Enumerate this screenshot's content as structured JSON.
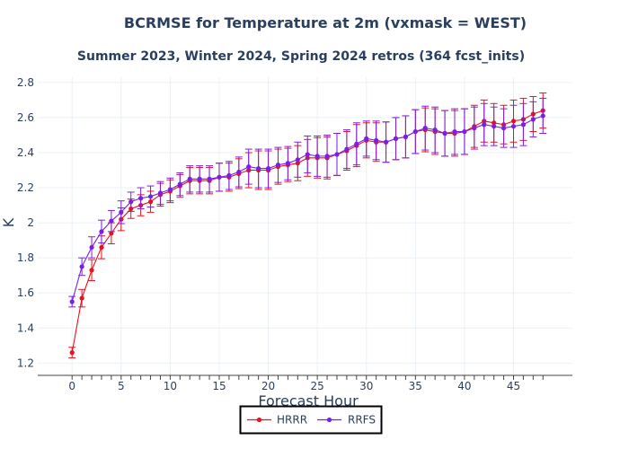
{
  "chart_data": {
    "type": "line",
    "title": "BCRMSE for Temperature at 2m (vxmask = WEST)",
    "subtitle": "Summer 2023, Winter 2024, Spring 2024 retros (364 fcst_inits)",
    "xlabel": "Forecast Hour",
    "ylabel": "K",
    "xlim": [
      -3.5,
      51
    ],
    "ylim": [
      1.13,
      2.83
    ],
    "xticks": [
      0,
      5,
      10,
      15,
      20,
      25,
      30,
      35,
      40,
      45
    ],
    "yticks": [
      1.2,
      1.4,
      1.6,
      1.8,
      2.0,
      2.2,
      2.4,
      2.6,
      2.8
    ],
    "ytick_labels": [
      "1.2",
      "1.4",
      "1.6",
      "1.8",
      "2",
      "2.2",
      "2.4",
      "2.6",
      "2.8"
    ],
    "grid": true,
    "legend_position": "bottom-center",
    "error_halfwidth": [
      0.03,
      0.05,
      0.06,
      0.065,
      0.06,
      0.065,
      0.055,
      0.06,
      0.06,
      0.065,
      0.065,
      0.065,
      0.075,
      0.075,
      0.075,
      0.08,
      0.08,
      0.085,
      0.1,
      0.11,
      0.11,
      0.1,
      0.095,
      0.1,
      0.105,
      0.115,
      0.12,
      0.12,
      0.11,
      0.12,
      0.1,
      0.11,
      0.115,
      0.12,
      0.12,
      0.125,
      0.125,
      0.13,
      0.13,
      0.13,
      0.13,
      0.12,
      0.12,
      0.11,
      0.11,
      0.12,
      0.12,
      0.1,
      0.1
    ],
    "series": [
      {
        "name": "HRRR",
        "color": "#e8121b",
        "x": [
          0,
          1,
          2,
          3,
          4,
          5,
          6,
          7,
          8,
          9,
          10,
          11,
          12,
          13,
          14,
          15,
          16,
          17,
          18,
          19,
          20,
          21,
          22,
          23,
          24,
          25,
          26,
          27,
          28,
          29,
          30,
          31,
          32,
          33,
          34,
          35,
          36,
          37,
          38,
          39,
          40,
          41,
          42,
          43,
          44,
          45,
          46,
          47,
          48
        ],
        "y": [
          1.26,
          1.57,
          1.73,
          1.86,
          1.94,
          2.02,
          2.08,
          2.1,
          2.12,
          2.16,
          2.18,
          2.21,
          2.24,
          2.24,
          2.24,
          2.26,
          2.26,
          2.28,
          2.3,
          2.3,
          2.3,
          2.32,
          2.33,
          2.34,
          2.37,
          2.37,
          2.37,
          2.39,
          2.41,
          2.44,
          2.47,
          2.46,
          2.46,
          2.48,
          2.49,
          2.52,
          2.53,
          2.52,
          2.51,
          2.51,
          2.52,
          2.55,
          2.58,
          2.57,
          2.56,
          2.58,
          2.59,
          2.62,
          2.64
        ]
      },
      {
        "name": "RRFS",
        "color": "#7b1fe8",
        "x": [
          0,
          1,
          2,
          3,
          4,
          5,
          6,
          7,
          8,
          9,
          10,
          11,
          12,
          13,
          14,
          15,
          16,
          17,
          18,
          19,
          20,
          21,
          22,
          23,
          24,
          25,
          26,
          27,
          28,
          29,
          30,
          31,
          32,
          33,
          34,
          35,
          36,
          37,
          38,
          39,
          40,
          41,
          42,
          43,
          44,
          45,
          46,
          47,
          48
        ],
        "y": [
          1.55,
          1.75,
          1.86,
          1.95,
          2.01,
          2.06,
          2.12,
          2.14,
          2.15,
          2.17,
          2.19,
          2.22,
          2.25,
          2.25,
          2.25,
          2.26,
          2.27,
          2.29,
          2.32,
          2.31,
          2.31,
          2.33,
          2.34,
          2.36,
          2.39,
          2.38,
          2.38,
          2.39,
          2.42,
          2.45,
          2.48,
          2.47,
          2.46,
          2.48,
          2.49,
          2.52,
          2.54,
          2.53,
          2.51,
          2.52,
          2.52,
          2.54,
          2.56,
          2.55,
          2.54,
          2.55,
          2.56,
          2.59,
          2.61
        ]
      }
    ]
  }
}
